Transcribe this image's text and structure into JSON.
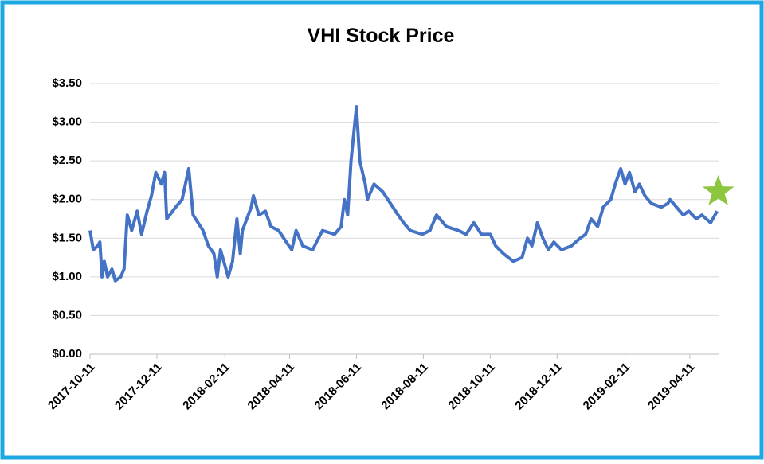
{
  "chart_data": {
    "type": "line",
    "title": "VHI Stock Price",
    "x": [
      "2017-10-11",
      "2017-10-14",
      "2017-10-18",
      "2017-10-20",
      "2017-10-22",
      "2017-10-24",
      "2017-10-27",
      "2017-10-31",
      "2017-11-03",
      "2017-11-08",
      "2017-11-11",
      "2017-11-14",
      "2017-11-18",
      "2017-11-23",
      "2017-11-27",
      "2017-12-02",
      "2017-12-06",
      "2017-12-10",
      "2017-12-15",
      "2017-12-18",
      "2017-12-20",
      "2017-12-28",
      "2018-01-03",
      "2018-01-09",
      "2018-01-13",
      "2018-01-22",
      "2018-01-27",
      "2018-02-01",
      "2018-02-04",
      "2018-02-07",
      "2018-02-14",
      "2018-02-18",
      "2018-02-22",
      "2018-02-25",
      "2018-02-27",
      "2018-03-07",
      "2018-03-09",
      "2018-03-14",
      "2018-03-20",
      "2018-03-25",
      "2018-04-01",
      "2018-04-08",
      "2018-04-13",
      "2018-04-17",
      "2018-04-23",
      "2018-05-02",
      "2018-05-11",
      "2018-05-22",
      "2018-05-28",
      "2018-05-31",
      "2018-06-03",
      "2018-06-06",
      "2018-06-11",
      "2018-06-14",
      "2018-06-19",
      "2018-06-21",
      "2018-06-27",
      "2018-07-05",
      "2018-07-12",
      "2018-07-19",
      "2018-07-24",
      "2018-07-30",
      "2018-08-10",
      "2018-08-17",
      "2018-08-23",
      "2018-09-01",
      "2018-09-12",
      "2018-09-19",
      "2018-09-26",
      "2018-10-03",
      "2018-10-11",
      "2018-10-16",
      "2018-10-23",
      "2018-11-01",
      "2018-11-09",
      "2018-11-14",
      "2018-11-18",
      "2018-11-23",
      "2018-11-28",
      "2018-12-03",
      "2018-12-08",
      "2018-12-15",
      "2018-12-24",
      "2019-01-01",
      "2019-01-06",
      "2019-01-11",
      "2019-01-17",
      "2019-01-22",
      "2019-01-29",
      "2019-02-02",
      "2019-02-07",
      "2019-02-11",
      "2019-02-15",
      "2019-02-20",
      "2019-02-24",
      "2019-03-01",
      "2019-03-07",
      "2019-03-16",
      "2019-03-22",
      "2019-03-24",
      "2019-03-30",
      "2019-04-05",
      "2019-04-10",
      "2019-04-17",
      "2019-04-22",
      "2019-04-30",
      "2019-05-06"
    ],
    "series": [
      {
        "name": "VHI",
        "color": "#4472c4",
        "values": [
          1.6,
          1.35,
          1.4,
          1.45,
          1.0,
          1.2,
          1.0,
          1.1,
          0.95,
          1.0,
          1.1,
          1.8,
          1.6,
          1.85,
          1.55,
          1.85,
          2.05,
          2.35,
          2.2,
          2.35,
          1.75,
          1.9,
          2.0,
          2.4,
          1.8,
          1.6,
          1.4,
          1.3,
          1.0,
          1.35,
          1.0,
          1.2,
          1.75,
          1.3,
          1.6,
          1.9,
          2.05,
          1.8,
          1.85,
          1.65,
          1.6,
          1.45,
          1.35,
          1.6,
          1.4,
          1.35,
          1.6,
          1.55,
          1.65,
          2.0,
          1.8,
          2.5,
          3.2,
          2.5,
          2.2,
          2.0,
          2.2,
          2.1,
          1.95,
          1.8,
          1.7,
          1.6,
          1.55,
          1.6,
          1.8,
          1.65,
          1.6,
          1.55,
          1.7,
          1.55,
          1.55,
          1.4,
          1.3,
          1.2,
          1.25,
          1.5,
          1.4,
          1.7,
          1.5,
          1.35,
          1.45,
          1.35,
          1.4,
          1.5,
          1.55,
          1.75,
          1.65,
          1.9,
          2.0,
          2.2,
          2.4,
          2.2,
          2.35,
          2.1,
          2.2,
          2.05,
          1.95,
          1.9,
          1.95,
          2.0,
          1.9,
          1.8,
          1.85,
          1.75,
          1.8,
          1.7,
          1.85
        ]
      }
    ],
    "marker": {
      "x": "2019-05-07",
      "value": 2.1,
      "color": "#8cc63f"
    },
    "xlim": [
      "2017-10-11",
      "2019-05-08"
    ],
    "xticks": [
      "2017-10-11",
      "2017-12-11",
      "2018-02-11",
      "2018-04-11",
      "2018-06-11",
      "2018-08-11",
      "2018-10-11",
      "2018-12-11",
      "2019-02-11",
      "2019-04-11"
    ],
    "ylim": [
      0,
      3.5
    ],
    "yticks": [
      {
        "value": 0,
        "label": "$0.00"
      },
      {
        "value": 0.5,
        "label": "$0.50"
      },
      {
        "value": 1,
        "label": "$1.00"
      },
      {
        "value": 1.5,
        "label": "$1.50"
      },
      {
        "value": 2,
        "label": "$2.00"
      },
      {
        "value": 2.5,
        "label": "$2.50"
      },
      {
        "value": 3,
        "label": "$3.00"
      },
      {
        "value": 3.5,
        "label": "$3.50"
      }
    ],
    "grid": true
  }
}
